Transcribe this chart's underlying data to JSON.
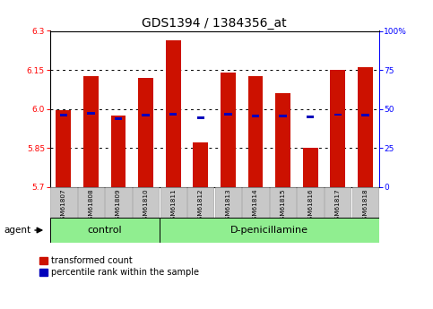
{
  "title": "GDS1394 / 1384356_at",
  "categories": [
    "GSM61807",
    "GSM61808",
    "GSM61809",
    "GSM61810",
    "GSM61811",
    "GSM61812",
    "GSM61813",
    "GSM61814",
    "GSM61815",
    "GSM61816",
    "GSM61817",
    "GSM61818"
  ],
  "red_values": [
    5.995,
    6.125,
    5.975,
    6.12,
    6.265,
    5.87,
    6.14,
    6.125,
    6.06,
    5.85,
    6.15,
    6.16
  ],
  "blue_values": [
    5.975,
    5.982,
    5.962,
    5.977,
    5.98,
    5.965,
    5.979,
    5.974,
    5.974,
    5.968,
    5.978,
    5.977
  ],
  "y_min": 5.7,
  "y_max": 6.3,
  "y_ticks_left": [
    5.7,
    5.85,
    6.0,
    6.15,
    6.3
  ],
  "y_ticks_right": [
    0,
    25,
    50,
    75,
    100
  ],
  "y_right_labels": [
    "0",
    "25",
    "50",
    "75",
    "100%"
  ],
  "bar_width": 0.55,
  "red_color": "#CC1100",
  "blue_color": "#0000BB",
  "bg_color": "#FFFFFF",
  "plot_bg": "#FFFFFF",
  "n_control": 4,
  "n_treatment": 8,
  "control_label": "control",
  "treatment_label": "D-penicillamine",
  "agent_label": "agent",
  "legend_red": "transformed count",
  "legend_blue": "percentile rank within the sample",
  "title_fontsize": 10,
  "tick_fontsize": 6.5,
  "group_fontsize": 8,
  "legend_fontsize": 7
}
